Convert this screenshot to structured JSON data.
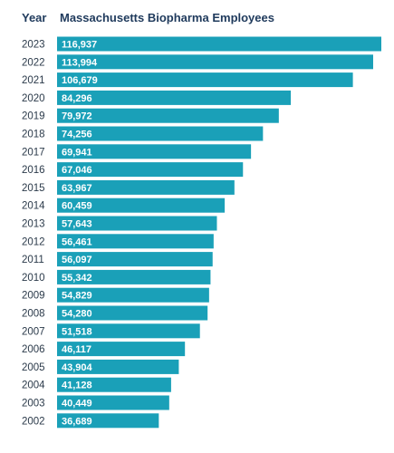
{
  "header": {
    "category_label": "Year",
    "series_label": "Massachusetts Biopharma Employees"
  },
  "colors": {
    "bar": "#1aa0b8",
    "header_text": "#1f3a5c",
    "category_text": "#2b3a4a",
    "value_text": "#ffffff"
  },
  "chart_data": {
    "type": "bar",
    "orientation": "horizontal",
    "title": "",
    "xlabel": "Massachusetts Biopharma Employees",
    "ylabel": "Year",
    "xlim": [
      0,
      116937
    ],
    "grid": false,
    "legend": "none",
    "categories": [
      "2023",
      "2022",
      "2021",
      "2020",
      "2019",
      "2018",
      "2017",
      "2016",
      "2015",
      "2014",
      "2013",
      "2012",
      "2011",
      "2010",
      "2009",
      "2008",
      "2007",
      "2006",
      "2005",
      "2004",
      "2003",
      "2002"
    ],
    "values": [
      116937,
      113994,
      106679,
      84296,
      79972,
      74256,
      69941,
      67046,
      63967,
      60459,
      57643,
      56461,
      56097,
      55342,
      54829,
      54280,
      51518,
      46117,
      43904,
      41128,
      40449,
      36689
    ],
    "value_labels": [
      "116,937",
      "113,994",
      "106,679",
      "84,296",
      "79,972",
      "74,256",
      "69,941",
      "67,046",
      "63,967",
      "60,459",
      "57,643",
      "56,461",
      "56,097",
      "55,342",
      "54,829",
      "54,280",
      "51,518",
      "46,117",
      "43,904",
      "41,128",
      "40,449",
      "36,689"
    ]
  }
}
